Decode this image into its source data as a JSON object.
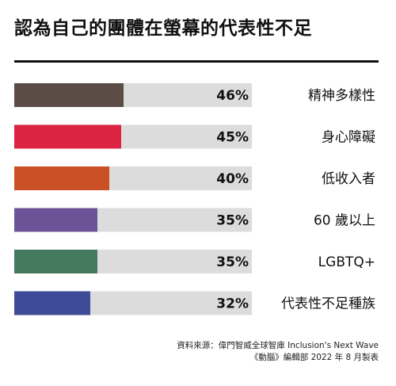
{
  "header": {
    "title": "認為自己的團體在螢幕的代表性不足"
  },
  "chart_data": {
    "type": "bar",
    "orientation": "horizontal",
    "title": "認為自己的團體在螢幕的代表性不足",
    "categories": [
      "精神多樣性",
      "身心障礙",
      "低收入者",
      "60 歲以上",
      "LGBTQ+",
      "代表性不足種族"
    ],
    "values": [
      46,
      45,
      40,
      35,
      35,
      32
    ],
    "value_labels": [
      "46%",
      "45%",
      "40%",
      "35%",
      "35%",
      "32%"
    ],
    "colors": [
      "#5b4c45",
      "#da2441",
      "#cc5026",
      "#6a5497",
      "#437a5e",
      "#3e4b97"
    ],
    "track_color": "#dcdcdc",
    "xlim": [
      0,
      100
    ],
    "grid": false,
    "legend": "none"
  },
  "footer": {
    "source_line1": "資料來源：偉門智威全球智庫 Inclusion's Next Wave",
    "source_line2": "《動腦》編輯部 2022 年 8 月製表"
  }
}
